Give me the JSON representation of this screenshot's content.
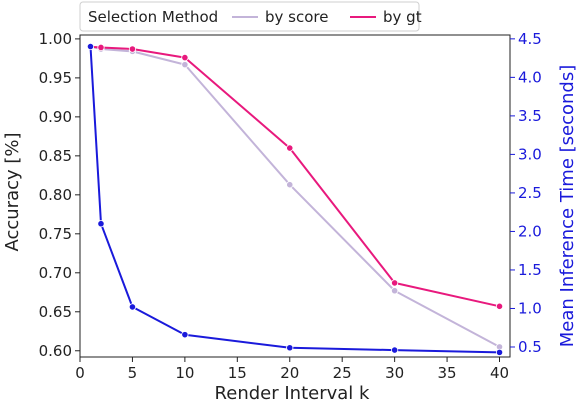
{
  "chart_data": {
    "type": "line",
    "xlabel": "Render Interval k",
    "ylabel": "Accuracy [%]",
    "y2label": "Mean Inference Time [seconds]",
    "xlim": [
      0,
      41
    ],
    "ylim": [
      0.592,
      1.005
    ],
    "y2lim": [
      0.37,
      4.55
    ],
    "x_ticks": [
      0,
      5,
      10,
      15,
      20,
      25,
      30,
      35,
      40
    ],
    "y_ticks": [
      0.6,
      0.65,
      0.7,
      0.75,
      0.8,
      0.85,
      0.9,
      0.95,
      1.0
    ],
    "y_tick_labels": [
      "0.60",
      "0.65",
      "0.70",
      "0.75",
      "0.80",
      "0.85",
      "0.90",
      "0.95",
      "1.00"
    ],
    "y2_ticks": [
      0.5,
      1.0,
      1.5,
      2.0,
      2.5,
      3.0,
      3.5,
      4.0,
      4.5
    ],
    "y2_tick_labels": [
      "0.5",
      "1.0",
      "1.5",
      "2.0",
      "2.5",
      "3.0",
      "3.5",
      "4.0",
      "4.5"
    ],
    "grid": false,
    "legend": {
      "title": "Selection Method",
      "position": "top"
    },
    "series": [
      {
        "name": "by score",
        "axis": "left",
        "color": "#c3b4d9",
        "x": [
          1,
          2,
          5,
          10,
          20,
          30,
          40
        ],
        "y": [
          0.99,
          0.987,
          0.984,
          0.967,
          0.813,
          0.677,
          0.605
        ]
      },
      {
        "name": "by gt",
        "axis": "left",
        "color": "#e8197d",
        "x": [
          1,
          2,
          5,
          10,
          20,
          30,
          40
        ],
        "y": [
          0.99,
          0.989,
          0.987,
          0.976,
          0.86,
          0.687,
          0.657
        ]
      },
      {
        "name": "",
        "axis": "right",
        "color": "#1a1adb",
        "x": [
          1,
          2,
          5,
          10,
          20,
          30,
          40
        ],
        "y": [
          4.4,
          2.1,
          1.02,
          0.66,
          0.49,
          0.46,
          0.43
        ]
      }
    ]
  }
}
